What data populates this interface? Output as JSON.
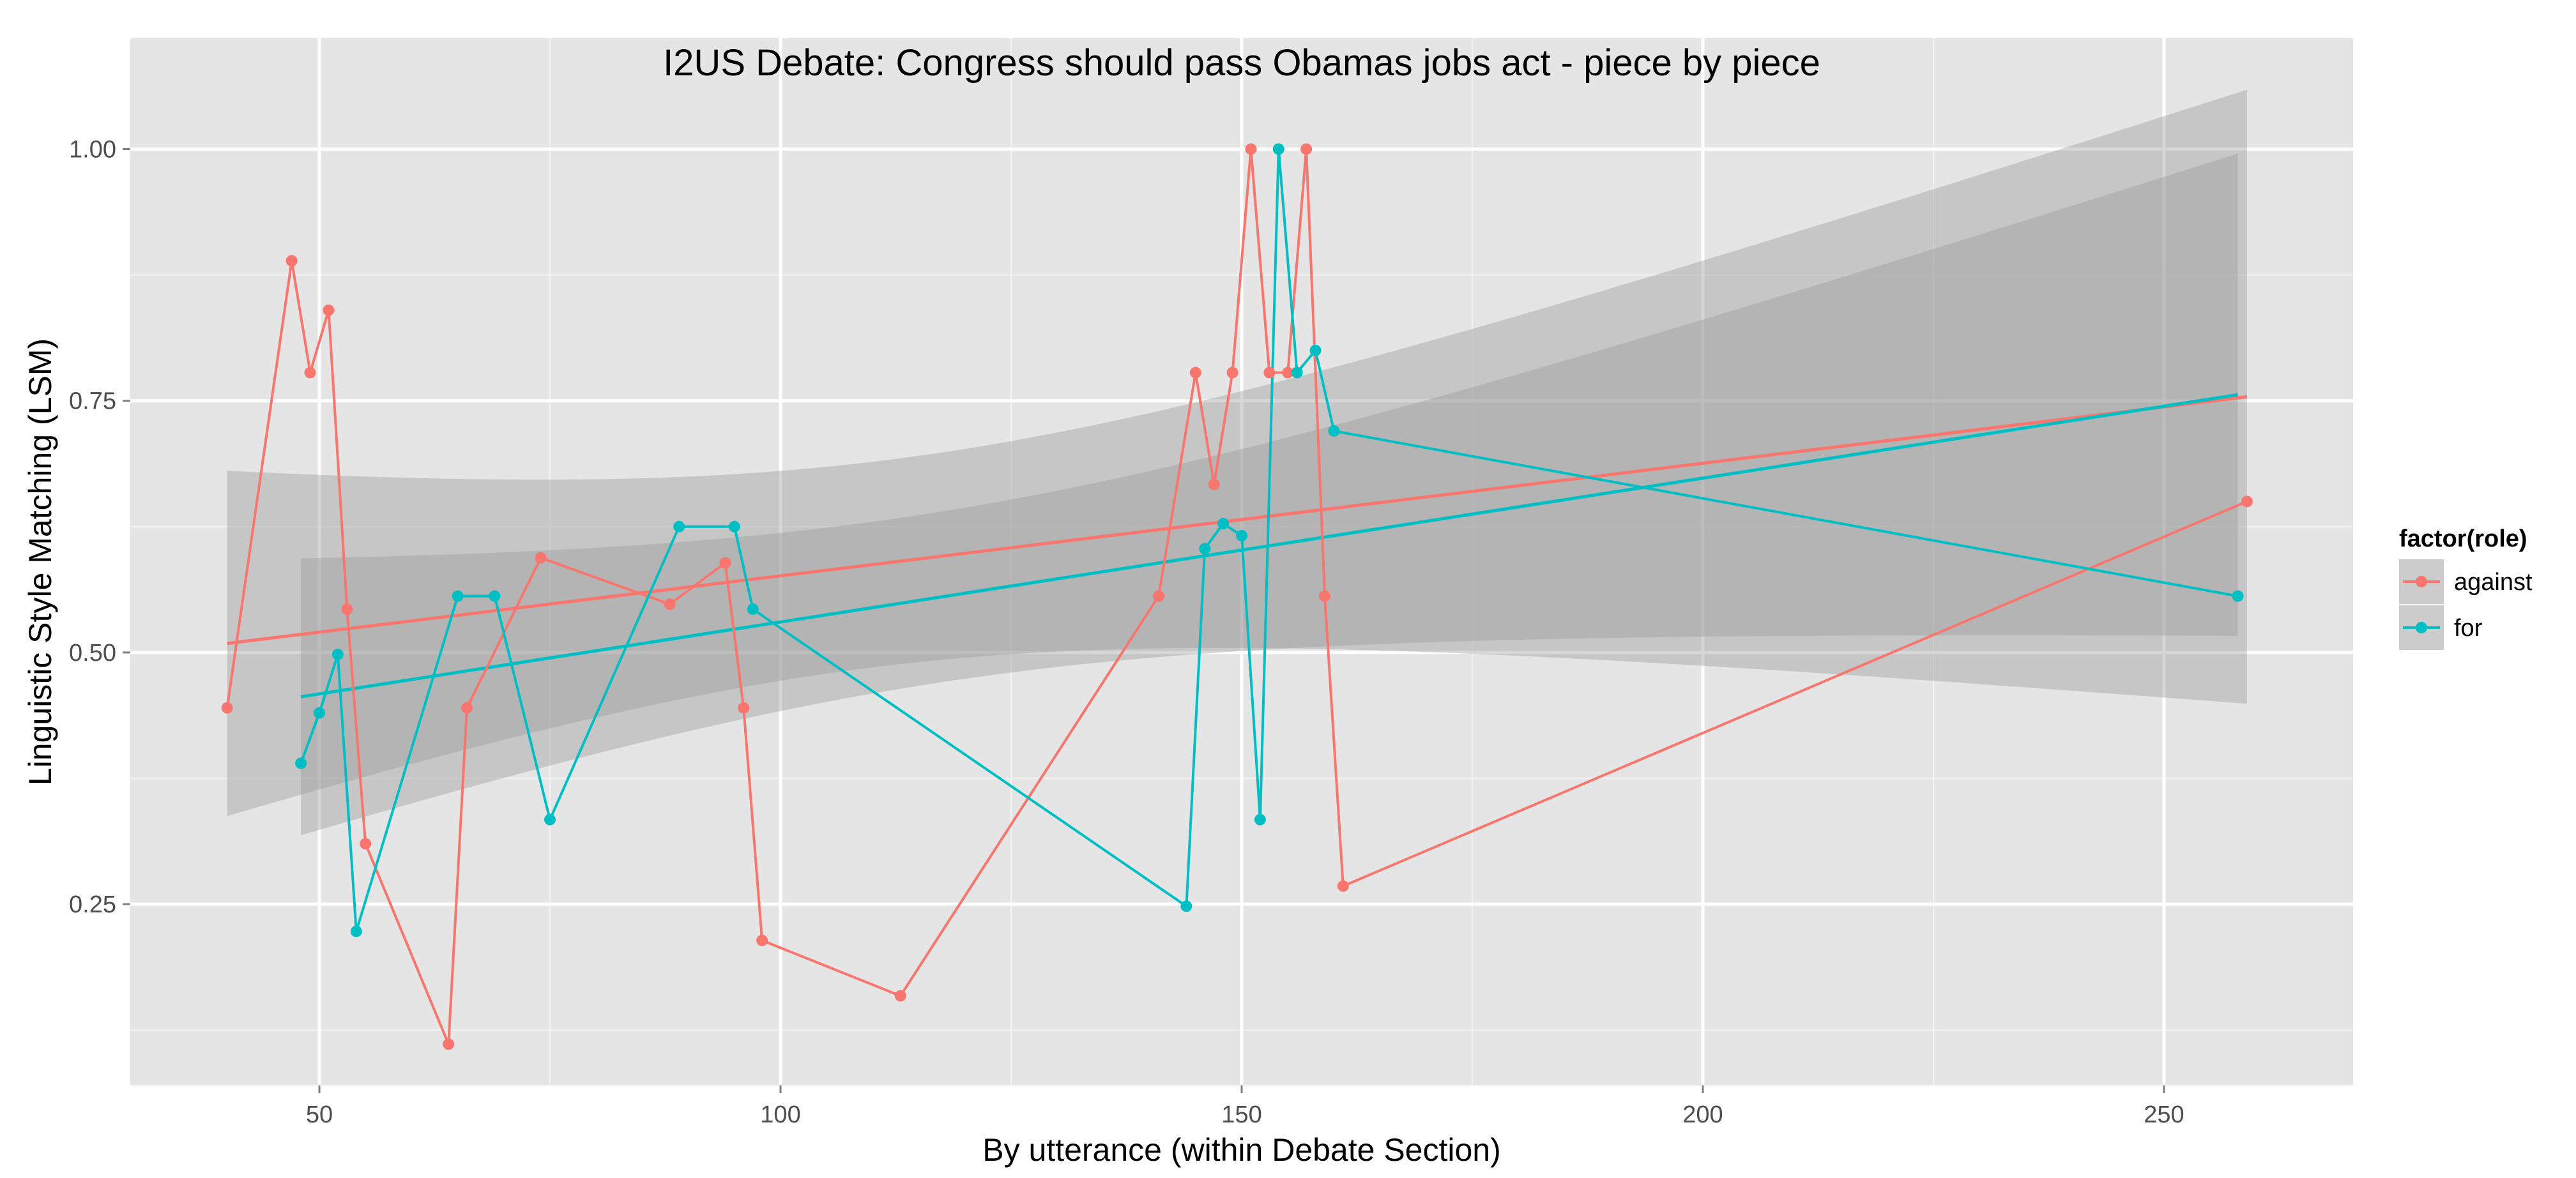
{
  "chart_data": {
    "type": "line",
    "title": "I2US Debate: Congress should pass Obamas jobs act - piece by piece",
    "xlabel": "By utterance (within Debate Section)",
    "ylabel": "Linguistic Style Matching (LSM)",
    "xlim": [
      29.5,
      270.5
    ],
    "ylim": [
      0.07,
      1.11
    ],
    "x_ticks": [
      50,
      100,
      150,
      200,
      250
    ],
    "x_tick_labels": [
      "50",
      "100",
      "150",
      "200",
      "250"
    ],
    "y_ticks": [
      0.25,
      0.5,
      0.75,
      1.0
    ],
    "y_tick_labels": [
      "0.25",
      "0.50",
      "0.75",
      "1.00"
    ],
    "grid": true,
    "legend": {
      "title": "factor(role)",
      "position": "right"
    },
    "series": [
      {
        "name": "against",
        "color": "#F8766D",
        "x": [
          40,
          47,
          49,
          51,
          53,
          55,
          64,
          66,
          74,
          88,
          94,
          96,
          98,
          113,
          141,
          145,
          147,
          149,
          151,
          153,
          155,
          157,
          159,
          161,
          259
        ],
        "y": [
          0.445,
          0.889,
          0.778,
          0.84,
          0.543,
          0.31,
          0.111,
          0.445,
          0.594,
          0.548,
          0.589,
          0.445,
          0.214,
          0.159,
          0.556,
          0.778,
          0.667,
          0.778,
          1.0,
          0.778,
          0.778,
          1.0,
          0.556,
          0.268,
          0.65
        ],
        "trend": {
          "x_start": 40,
          "y_start": 0.509,
          "x_end": 259,
          "y_end": 0.754
        },
        "band": {
          "lower_start": 0.338,
          "upper_start": 0.681,
          "lower_end": 0.45,
          "upper_end": 1.06
        }
      },
      {
        "name": "for",
        "color": "#00BFC4",
        "x": [
          48,
          50,
          52,
          54,
          65,
          69,
          75,
          89,
          95,
          97,
          144,
          146,
          148,
          150,
          152,
          154,
          156,
          158,
          160,
          258
        ],
        "y": [
          0.39,
          0.44,
          0.498,
          0.223,
          0.556,
          0.556,
          0.334,
          0.625,
          0.625,
          0.543,
          0.248,
          0.603,
          0.628,
          0.616,
          0.334,
          1.0,
          0.778,
          0.8,
          0.72,
          0.556
        ],
        "trend": {
          "x_start": 48,
          "y_start": 0.456,
          "x_end": 258,
          "y_end": 0.756
        },
        "band": {
          "lower_start": 0.319,
          "upper_start": 0.594,
          "lower_end": 0.517,
          "upper_end": 0.996
        }
      }
    ]
  }
}
